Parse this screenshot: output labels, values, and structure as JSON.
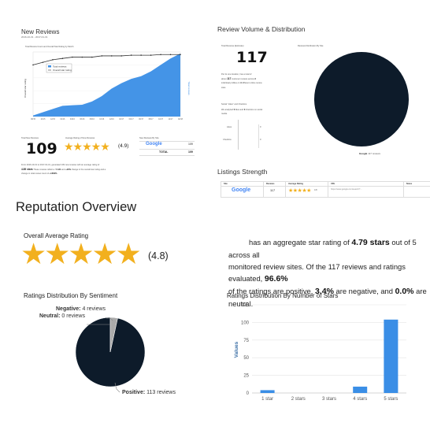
{
  "new_reviews": {
    "title": "New Reviews",
    "date_range": "2016-10-31 - 2017-01-31",
    "chart_title": "Total Review Count and Overall Star Rating by Month",
    "legend": [
      "Total reviews",
      "Overall star rating"
    ],
    "y_left_label": "Overall star rating",
    "y_right_label": "Total reviews",
    "chart_data": {
      "type": "area",
      "x": [
        "08/15",
        "10/15",
        "12/15",
        "02/16",
        "04/16",
        "06/16",
        "08/16",
        "10/16",
        "12/16",
        "02/17",
        "04/17",
        "06/17",
        "08/17",
        "10/17",
        "12/17",
        "02/18"
      ],
      "series": [
        {
          "name": "Total reviews",
          "values": [
            2,
            8,
            14,
            20,
            21,
            22,
            28,
            38,
            52,
            62,
            70,
            75,
            84,
            96,
            108,
            117
          ]
        },
        {
          "name": "Overall star rating",
          "values": [
            4.0,
            4.2,
            4.4,
            4.5,
            4.6,
            4.6,
            4.6,
            4.7,
            4.7,
            4.7,
            4.75,
            4.75,
            4.75,
            4.8,
            4.8,
            4.8
          ]
        }
      ],
      "ylim_left": [
        0,
        5
      ],
      "ylim_right": [
        0,
        120
      ]
    },
    "total_label": "Total New Reviews",
    "total_value": "109",
    "avg_label": "Average Rating of New Reviews",
    "avg_value": "(4.9)",
    "site_label": "New Reviews By Site",
    "site_rows": [
      {
        "site": "Google",
        "count": "109"
      }
    ],
    "total_row": {
      "label": "TOTAL",
      "count": "109"
    },
    "summary_line1": "From 2016-10-31 to 2017-01-31,",
    "summary_line1b": "generated 109 new reviews with an average rating of",
    "summary_line2_stars": "4.89 stars",
    "summary_line2b": "These reviews reflect a",
    "summary_line2c": "▼1.61",
    "summary_line2d": "and",
    "summary_line2e": "+42%",
    "summary_line2f": "change in the overall star rating and a",
    "summary_line3": "change in total review count of",
    "summary_line3b": "+1363%"
  },
  "volume": {
    "title": "Review Volume & Distribution",
    "total_label": "Total Reviews (Estimate)",
    "total_value": "117",
    "distribution_label": "Reviews Distribution By Site",
    "desc_line1": "Per its one location,",
    "desc_line1b": "has a total of",
    "desc_line2": "about",
    "desc_count": "117",
    "desc_line2b": "customer reviews across",
    "desc_sites": "3",
    "desc_line3": "individual profiles on",
    "desc_sites2": "3",
    "desc_line3b": "different online review",
    "desc_line4": "sites.",
    "social_label": "Social \"Likes\" and Checkins",
    "social_line1": "We analyzed",
    "social_bold1": "0",
    "social_line1b": "likes and",
    "social_bold2": "0",
    "social_line1c": "checkins on social",
    "social_line2": "media.",
    "likes_label": "Likes",
    "likes_value": "0",
    "checkins_label": "Checkins",
    "checkins_value": "0",
    "pie_label": "Google",
    "pie_value": "117 reviews",
    "chart_data": {
      "type": "pie",
      "categories": [
        "Google"
      ],
      "values": [
        117
      ]
    }
  },
  "listings": {
    "title": "Listings Strength",
    "headers": [
      "Site",
      "Reviews",
      "Average Rating",
      "URL",
      "Notes"
    ],
    "rows": [
      {
        "site": "Google",
        "reviews": "117",
        "rating": "4.8",
        "url": "https://www.google.com/search?..."
      }
    ]
  },
  "overview": {
    "title": "Reputation Overview",
    "avg_title": "Overall Average Rating",
    "avg_value": "(4.8)",
    "text_a": "has an aggregate star rating of",
    "rating_bold": "4.79 stars",
    "text_b": "out of 5 across all",
    "text_c": "monitored review sites. Of the 117 reviews and ratings evaluated,",
    "pos_pct": "96.6%",
    "text_d": "of the ratings are positive,",
    "neg_pct": "3.4%",
    "text_e": "are negative, and",
    "neu_pct": "0.0%",
    "text_f": "are neutral."
  },
  "sentiment": {
    "title": "Ratings Distribution By Sentiment",
    "labels": [
      {
        "name": "Negative:",
        "value": "4 reviews"
      },
      {
        "name": "Neutral:",
        "value": "0 reviews"
      },
      {
        "name": "Positive:",
        "value": "113 reviews"
      }
    ],
    "chart_data": {
      "type": "pie",
      "categories": [
        "Positive",
        "Negative",
        "Neutral"
      ],
      "values": [
        113,
        4,
        0
      ],
      "colors": [
        "#0d1b2a",
        "#aaaaaa",
        "#dddddd"
      ]
    }
  },
  "stars_dist": {
    "title": "Ratings Distribution By Number of Stars",
    "chart_data": {
      "type": "bar",
      "categories": [
        "1 star",
        "2 stars",
        "3 stars",
        "4 stars",
        "5 stars"
      ],
      "values": [
        4,
        0,
        0,
        9,
        104
      ],
      "ylabel": "Values",
      "ylim": [
        0,
        125
      ],
      "yticks": [
        0,
        25,
        50,
        75,
        100,
        125
      ],
      "bar_color": "#3a8ee6"
    }
  },
  "colors": {
    "accent_blue": "#3a8ee6",
    "navy": "#0d1b2a",
    "star": "#f2b01e"
  }
}
